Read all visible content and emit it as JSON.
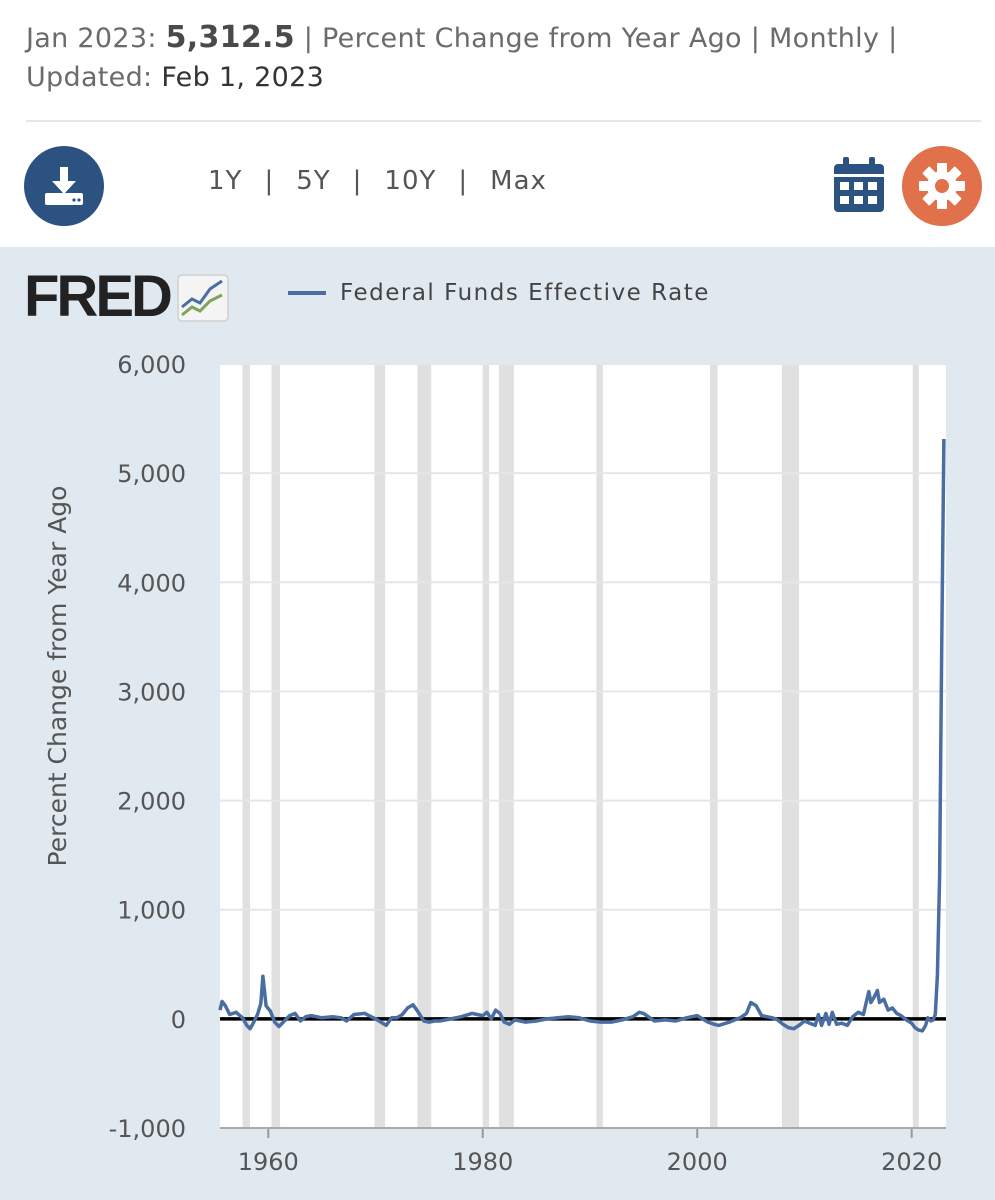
{
  "header": {
    "date_label": "Jan 2023:",
    "value": "5,312.5",
    "units_freq": "| Percent Change from Year Ago | Monthly |",
    "updated_label": "Updated:",
    "updated_date": "Feb 1, 2023"
  },
  "toolbar": {
    "ranges": [
      "1Y",
      "5Y",
      "10Y",
      "Max"
    ],
    "download_icon": "download-icon",
    "calendar_icon": "calendar-icon",
    "settings_icon": "gear-icon"
  },
  "logo": {
    "text": "FRED"
  },
  "colors": {
    "series": "#4a6ea2",
    "background": "#e1e9f0",
    "recession": "#e0e0e0",
    "download": "#2c5282",
    "settings": "#e0714a"
  },
  "chart_data": {
    "type": "line",
    "title": "",
    "legend": [
      "Federal Funds Effective Rate"
    ],
    "xlabel": "",
    "ylabel": "Percent Change from Year Ago",
    "xlim": [
      1955.5,
      2023.2
    ],
    "ylim": [
      -1000,
      6000
    ],
    "xticks": [
      1960,
      1980,
      2000,
      2020
    ],
    "xtick_labels": [
      "1960",
      "1980",
      "2000",
      "2020"
    ],
    "yticks": [
      -1000,
      0,
      1000,
      2000,
      3000,
      4000,
      5000,
      6000
    ],
    "ytick_labels": [
      "-1,000",
      "0",
      "1,000",
      "2,000",
      "3,000",
      "4,000",
      "5,000",
      "6,000"
    ],
    "recessions": [
      [
        1957.6,
        1958.3
      ],
      [
        1960.3,
        1961.1
      ],
      [
        1969.9,
        1970.9
      ],
      [
        1973.9,
        1975.2
      ],
      [
        1980.0,
        1980.6
      ],
      [
        1981.5,
        1982.9
      ],
      [
        1990.6,
        1991.2
      ],
      [
        2001.2,
        2001.9
      ],
      [
        2007.9,
        2009.5
      ],
      [
        2020.1,
        2020.4
      ]
    ],
    "series": [
      {
        "name": "Federal Funds Effective Rate",
        "x": [
          1955.5,
          1955.7,
          1956.0,
          1956.4,
          1957.0,
          1957.6,
          1958.0,
          1958.3,
          1958.6,
          1959.0,
          1959.3,
          1959.5,
          1959.8,
          1960.2,
          1960.6,
          1961.0,
          1961.5,
          1962.0,
          1962.5,
          1963.0,
          1963.5,
          1964.0,
          1965.0,
          1966.0,
          1966.8,
          1967.3,
          1968.0,
          1969.0,
          1970.0,
          1970.5,
          1971.0,
          1971.5,
          1972.0,
          1972.5,
          1973.0,
          1973.5,
          1974.0,
          1974.5,
          1975.0,
          1975.5,
          1976.0,
          1977.0,
          1978.0,
          1979.0,
          1979.5,
          1980.0,
          1980.4,
          1980.8,
          1981.2,
          1981.6,
          1982.0,
          1982.5,
          1983.0,
          1984.0,
          1985.0,
          1986.0,
          1987.0,
          1988.0,
          1989.0,
          1990.0,
          1991.0,
          1992.0,
          1993.0,
          1994.0,
          1994.6,
          1995.0,
          1996.0,
          1997.0,
          1998.0,
          1999.0,
          2000.0,
          2001.0,
          2001.6,
          2002.0,
          2003.0,
          2004.0,
          2004.6,
          2005.0,
          2005.5,
          2006.0,
          2007.0,
          2007.5,
          2008.0,
          2008.5,
          2009.0,
          2009.5,
          2010.0,
          2010.5,
          2011.0,
          2011.3,
          2011.6,
          2012.0,
          2012.3,
          2012.6,
          2013.0,
          2013.5,
          2014.0,
          2014.5,
          2015.0,
          2015.5,
          2016.0,
          2016.2,
          2016.5,
          2016.8,
          2017.0,
          2017.4,
          2017.8,
          2018.2,
          2018.6,
          2019.0,
          2019.5,
          2020.0,
          2020.3,
          2020.6,
          2021.0,
          2021.3,
          2021.5,
          2021.8,
          2022.0,
          2022.2,
          2022.4,
          2022.6,
          2022.8,
          2023.0
        ],
        "y": [
          80,
          160,
          120,
          40,
          60,
          10,
          -60,
          -90,
          -40,
          40,
          140,
          390,
          120,
          70,
          -30,
          -70,
          -20,
          30,
          50,
          -20,
          20,
          30,
          10,
          20,
          10,
          -20,
          40,
          50,
          0,
          -30,
          -60,
          10,
          10,
          40,
          100,
          130,
          60,
          -20,
          -30,
          -20,
          -20,
          0,
          20,
          50,
          40,
          30,
          60,
          0,
          80,
          50,
          -30,
          -50,
          -10,
          -30,
          -20,
          0,
          10,
          20,
          10,
          -20,
          -30,
          -30,
          -10,
          20,
          60,
          50,
          -20,
          -10,
          -20,
          10,
          30,
          -30,
          -50,
          -60,
          -30,
          10,
          50,
          150,
          120,
          30,
          10,
          -10,
          -50,
          -80,
          -90,
          -60,
          -20,
          -40,
          -60,
          40,
          -60,
          50,
          -50,
          60,
          -50,
          -40,
          -60,
          20,
          60,
          40,
          250,
          150,
          200,
          260,
          150,
          180,
          80,
          100,
          50,
          30,
          -10,
          -40,
          -80,
          -100,
          -110,
          -60,
          10,
          -20,
          -10,
          40,
          400,
          1300,
          3400,
          5312.5
        ]
      }
    ]
  }
}
